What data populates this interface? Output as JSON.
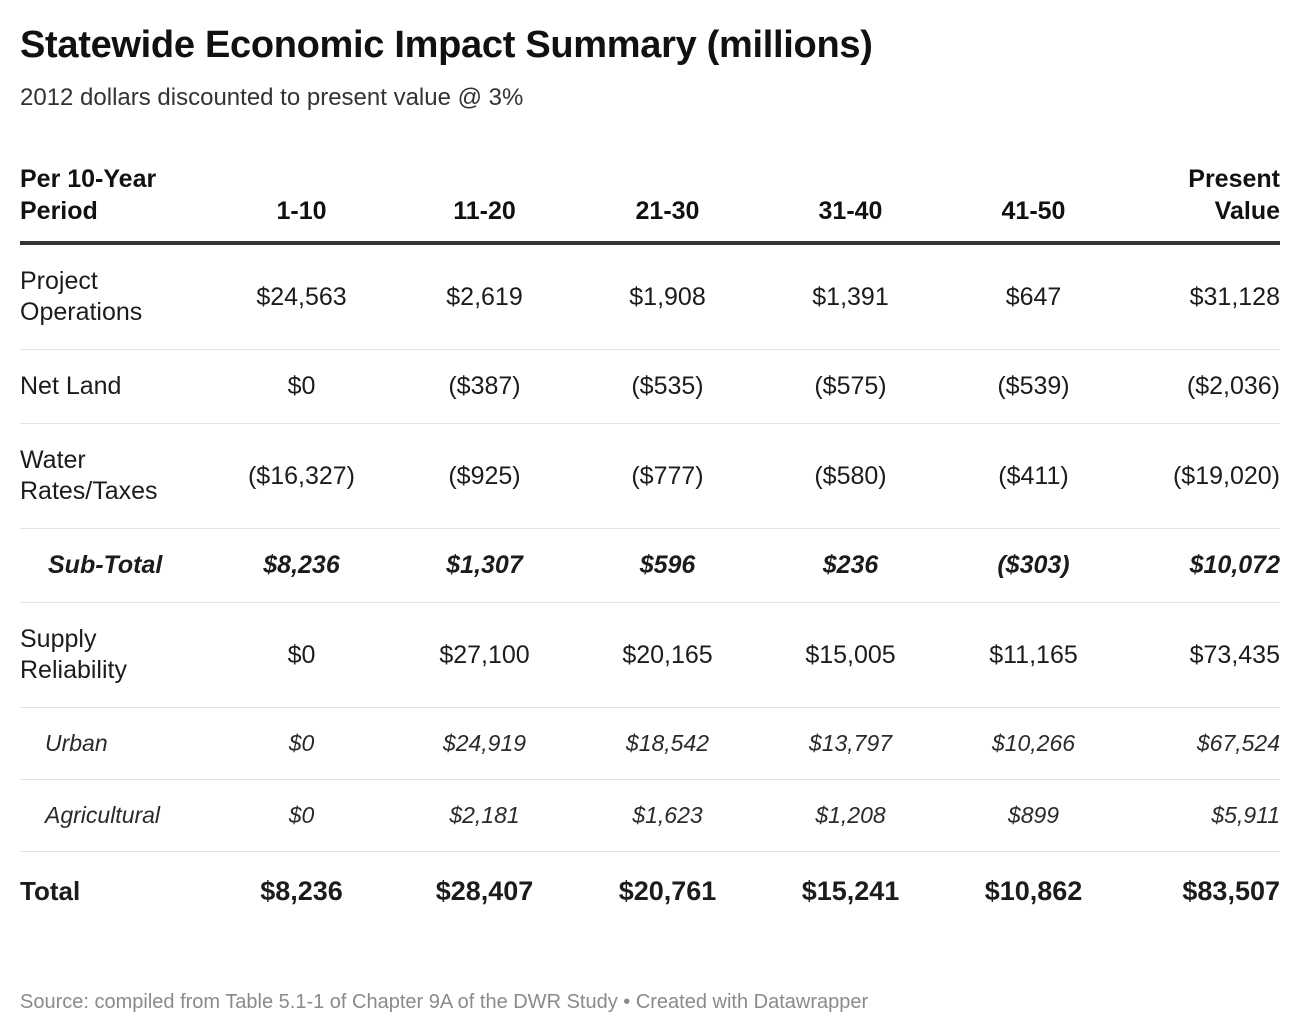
{
  "title": "Statewide Economic Impact Summary (millions)",
  "subtitle": "2012 dollars discounted to present value @ 3%",
  "chart_data": {
    "type": "table",
    "columns": [
      "Per 10-Year Period",
      "1-10",
      "11-20",
      "21-30",
      "31-40",
      "41-50",
      "Present Value"
    ],
    "rows": [
      {
        "label": "Project Operations",
        "style": "normal",
        "values": [
          "$24,563",
          "$2,619",
          "$1,908",
          "$1,391",
          "$647",
          "$31,128"
        ]
      },
      {
        "label": "Net Land",
        "style": "normal",
        "values": [
          "$0",
          "($387)",
          "($535)",
          "($575)",
          "($539)",
          "($2,036)"
        ]
      },
      {
        "label": "Water Rates/Taxes",
        "style": "normal",
        "values": [
          "($16,327)",
          "($925)",
          "($777)",
          "($580)",
          "($411)",
          "($19,020)"
        ]
      },
      {
        "label": "Sub-Total",
        "style": "subtotal",
        "values": [
          "$8,236",
          "$1,307",
          "$596",
          "$236",
          "($303)",
          "$10,072"
        ]
      },
      {
        "label": "Supply Reliability",
        "style": "normal",
        "values": [
          "$0",
          "$27,100",
          "$20,165",
          "$15,005",
          "$11,165",
          "$73,435"
        ]
      },
      {
        "label": "Urban",
        "style": "indent",
        "values": [
          "$0",
          "$24,919",
          "$18,542",
          "$13,797",
          "$10,266",
          "$67,524"
        ]
      },
      {
        "label": "Agricultural",
        "style": "indent",
        "values": [
          "$0",
          "$2,181",
          "$1,623",
          "$1,208",
          "$899",
          "$5,911"
        ]
      },
      {
        "label": "Total",
        "style": "total",
        "values": [
          "$8,236",
          "$28,407",
          "$20,761",
          "$15,241",
          "$10,862",
          "$83,507"
        ]
      }
    ]
  },
  "source": "Source: compiled from Table 5.1-1 of Chapter 9A of the DWR Study • Created with Datawrapper"
}
